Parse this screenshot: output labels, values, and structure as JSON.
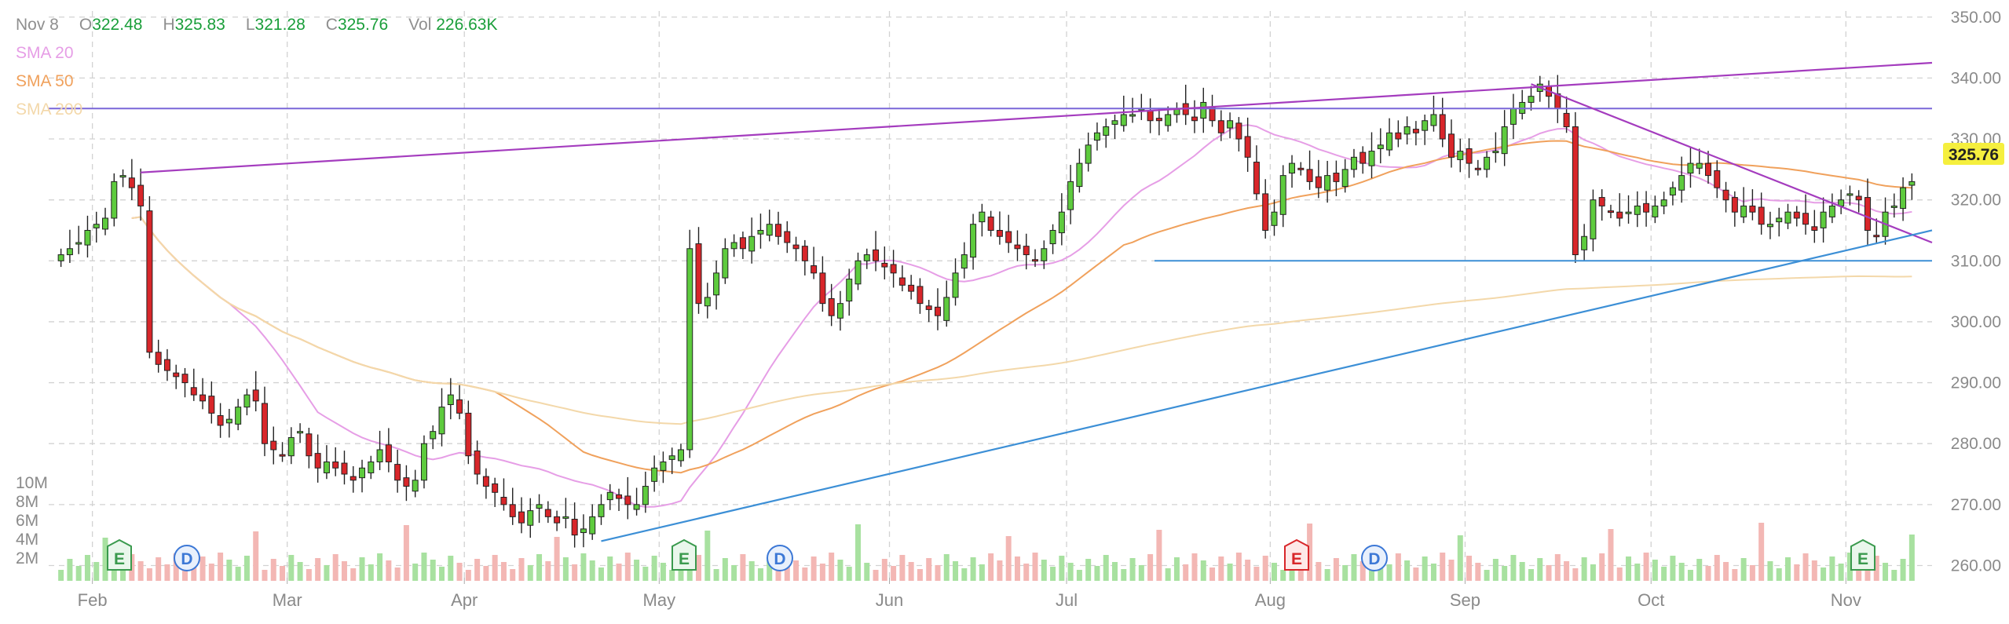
{
  "legend": {
    "date": "Nov 8",
    "open_label": "O",
    "open": "322.48",
    "high_label": "H",
    "high": "325.83",
    "low_label": "L",
    "low": "321.28",
    "close_label": "C",
    "close": "325.76",
    "vol_label": "Vol",
    "vol": "226.63K",
    "sma20": "SMA 20",
    "sma50": "SMA 50",
    "sma200": "SMA 200"
  },
  "colors": {
    "up": "#5ecb3e",
    "down": "#d8262a",
    "up_volume": "#a8e1a0",
    "down_volume": "#f3b7b4",
    "sma20": "#e69ee6",
    "sma50": "#f0a15c",
    "sma200": "#f3d8aa",
    "trend_purple": "#a43cbe",
    "level_purple": "#7a66d8",
    "trend_blue": "#3c8fd6",
    "last_price_bg": "#f5ef3e",
    "event_e_green": "#3a9a4e",
    "event_e_red": "#d8262a",
    "event_d_blue": "#3c78d6"
  },
  "chart_data": {
    "type": "candlestick",
    "x_ticks": [
      "Feb",
      "Mar",
      "Apr",
      "May",
      "Jun",
      "Jul",
      "Aug",
      "Sep",
      "Oct",
      "Nov"
    ],
    "y_ticks": [
      "350.00",
      "340.00",
      "330.00",
      "320.00",
      "310.00",
      "300.00",
      "290.00",
      "280.00",
      "270.00",
      "260.00"
    ],
    "ylim": [
      258,
      351
    ],
    "volume_ticks": [
      "10M",
      "8M",
      "6M",
      "4M",
      "2M"
    ],
    "volume_max": 10,
    "last_price": "325.76",
    "close_series": [
      311,
      312,
      313,
      315,
      316,
      317,
      323,
      324,
      322,
      319,
      295,
      293,
      292,
      291,
      290,
      288,
      287,
      285,
      283,
      284,
      286,
      288,
      287,
      280,
      279,
      278,
      281,
      282,
      278,
      276,
      277,
      276,
      275,
      274,
      276,
      277,
      279,
      277,
      274,
      273,
      274,
      280,
      282,
      286,
      288,
      285,
      278,
      275,
      273,
      272,
      270,
      268,
      267,
      269,
      270,
      268,
      267,
      268,
      265,
      266,
      268,
      270,
      272,
      271,
      270,
      270,
      273,
      276,
      277,
      278,
      279,
      312,
      303,
      304,
      308,
      312,
      313,
      312,
      314,
      315,
      316,
      314,
      313,
      312,
      310,
      308,
      303,
      301,
      303,
      307,
      310,
      311,
      310,
      309,
      308,
      306,
      305,
      303,
      302,
      301,
      304,
      308,
      311,
      316,
      318,
      315,
      314,
      313,
      312,
      311,
      310,
      312,
      315,
      318,
      323,
      326,
      329,
      331,
      332,
      333,
      334,
      334,
      335,
      333,
      333,
      334,
      335,
      334,
      333,
      336,
      333,
      331,
      333,
      330,
      327,
      321,
      315,
      318,
      324,
      326,
      325,
      323,
      322,
      324,
      323,
      325,
      327,
      326,
      328,
      329,
      331,
      330,
      332,
      331,
      333,
      334,
      330,
      327,
      328,
      326,
      325,
      327,
      328,
      332,
      335,
      336,
      337,
      339,
      337,
      335,
      332,
      311,
      314,
      320,
      319,
      318,
      317,
      318,
      319,
      318,
      319,
      320,
      322,
      324,
      326,
      326,
      324,
      322,
      320,
      318,
      319,
      318,
      316,
      316,
      317,
      318,
      317,
      316,
      315,
      318,
      319,
      320,
      321,
      320,
      315,
      314,
      318,
      319,
      322,
      323
    ],
    "events": [
      {
        "label": "E",
        "type": "earnings",
        "date": "Feb"
      },
      {
        "label": "D",
        "type": "dividend",
        "date": "Feb"
      },
      {
        "label": "E",
        "type": "earnings",
        "date": "May"
      },
      {
        "label": "D",
        "type": "dividend",
        "date": "May"
      },
      {
        "label": "E",
        "type": "earnings-miss",
        "date": "Aug"
      },
      {
        "label": "D",
        "type": "dividend",
        "date": "Aug"
      },
      {
        "label": "E",
        "type": "earnings",
        "date": "Nov"
      }
    ],
    "horizontal_levels": [
      335,
      310
    ]
  }
}
